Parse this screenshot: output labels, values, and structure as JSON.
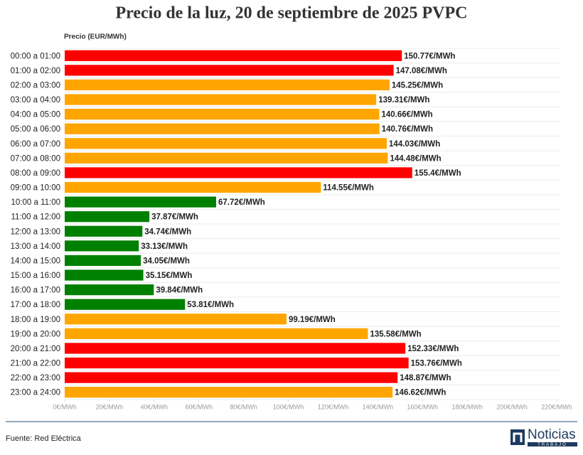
{
  "chart_data": {
    "type": "bar",
    "orientation": "horizontal",
    "title": "Precio de la luz, 20 de septiembre de 2025 PVPC",
    "x_label": "Precio (EUR/MWh)",
    "categories": [
      "00:00 a 01:00",
      "01:00 a 02:00",
      "02:00 a 03:00",
      "03:00 a 04:00",
      "04:00 a 05:00",
      "05:00 a 06:00",
      "06:00 a 07:00",
      "07:00 a 08:00",
      "08:00 a 09:00",
      "09:00 a 10:00",
      "10:00 a 11:00",
      "11:00 a 12:00",
      "12:00 a 13:00",
      "13:00 a 14:00",
      "14:00 a 15:00",
      "15:00 a 16:00",
      "16:00 a 17:00",
      "17:00 a 18:00",
      "18:00 a 19:00",
      "19:00 a 20:00",
      "20:00 a 21:00",
      "21:00 a 22:00",
      "22:00 a 23:00",
      "23:00 a 24:00"
    ],
    "values": [
      150.77,
      147.08,
      145.25,
      139.31,
      140.66,
      140.76,
      144.03,
      144.48,
      155.4,
      114.55,
      67.72,
      37.87,
      34.74,
      33.13,
      34.05,
      35.15,
      39.84,
      53.81,
      99.19,
      135.58,
      152.33,
      153.76,
      148.87,
      146.62
    ],
    "value_labels": [
      "150.77€/MWh",
      "147.08€/MWh",
      "145.25€/MWh",
      "139.31€/MWh",
      "140.66€/MWh",
      "140.76€/MWh",
      "144.03€/MWh",
      "144.48€/MWh",
      "155.4€/MWh",
      "114.55€/MWh",
      "67.72€/MWh",
      "37.87€/MWh",
      "34.74€/MWh",
      "33.13€/MWh",
      "34.05€/MWh",
      "35.15€/MWh",
      "39.84€/MWh",
      "53.81€/MWh",
      "99.19€/MWh",
      "135.58€/MWh",
      "152.33€/MWh",
      "153.76€/MWh",
      "148.87€/MWh",
      "146.62€/MWh"
    ],
    "colors": [
      "#ff0000",
      "#ff0000",
      "#ffa500",
      "#ffa500",
      "#ffa500",
      "#ffa500",
      "#ffa500",
      "#ffa500",
      "#ff0000",
      "#ffa500",
      "#008000",
      "#008000",
      "#008000",
      "#008000",
      "#008000",
      "#008000",
      "#008000",
      "#008000",
      "#ffa500",
      "#ffa500",
      "#ff0000",
      "#ff0000",
      "#ff0000",
      "#ffa500"
    ],
    "xlim": [
      0,
      220
    ],
    "xticks": [
      {
        "value": 0,
        "label": "0€/MWh"
      },
      {
        "value": 20,
        "label": "20€/MWh"
      },
      {
        "value": 40,
        "label": "40€/MWh"
      },
      {
        "value": 60,
        "label": "60€/MWh"
      },
      {
        "value": 80,
        "label": "80€/MWh"
      },
      {
        "value": 100,
        "label": "100€/MWh"
      },
      {
        "value": 120,
        "label": "120€/MWh"
      },
      {
        "value": 140,
        "label": "140€/MWh"
      },
      {
        "value": 160,
        "label": "160€/MWh"
      },
      {
        "value": 180,
        "label": "180€/MWh"
      },
      {
        "value": 200,
        "label": "200€/MWh"
      },
      {
        "value": 220,
        "label": "220€/MWh"
      }
    ],
    "grid": false
  },
  "footer": {
    "source": "Fuente: Red Eléctrica",
    "logo": {
      "name": "Noticias",
      "subtitle": "TRABAJO"
    }
  }
}
